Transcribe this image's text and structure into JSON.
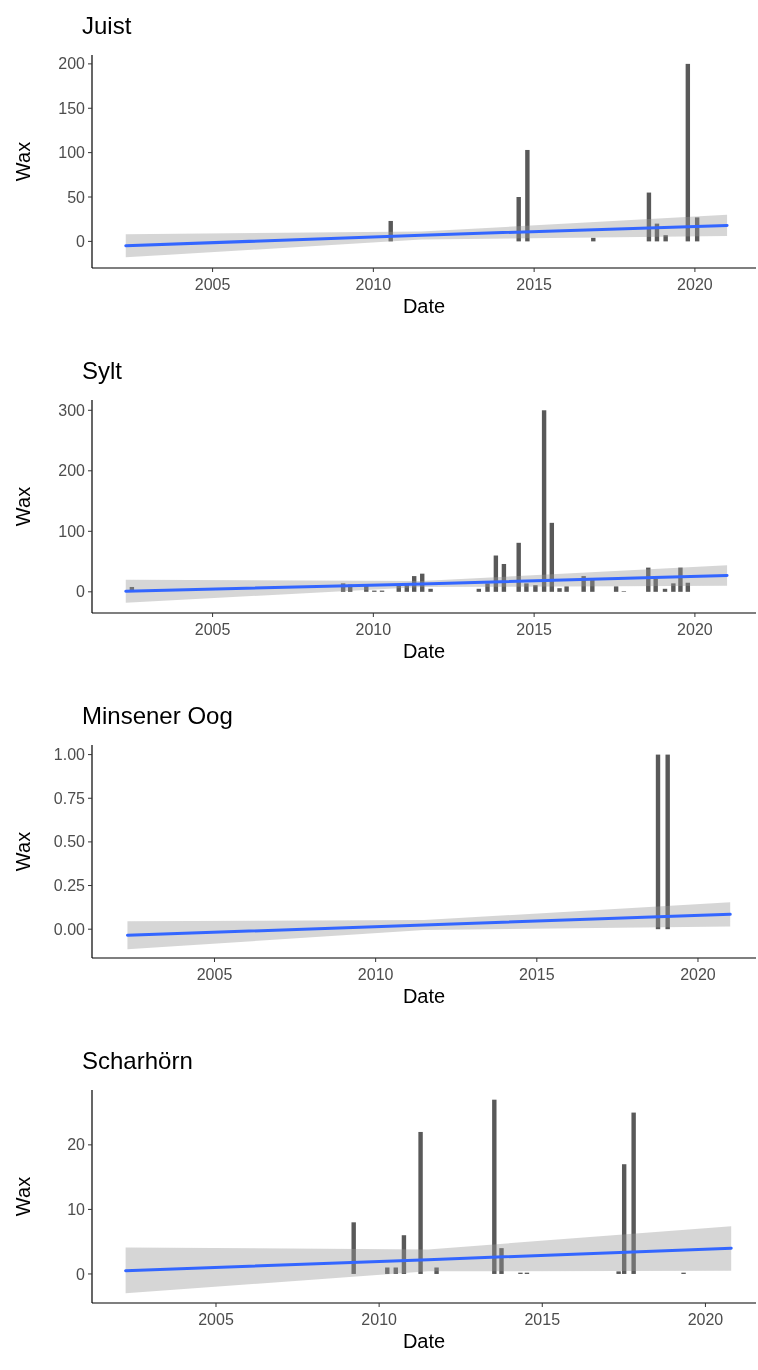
{
  "chart_data": [
    {
      "type": "bar",
      "title": "Juist",
      "xlabel": "Date",
      "ylabel": "Wax",
      "xlim": [
        2001.25,
        2021.9
      ],
      "xticks": [
        2005,
        2010,
        2015,
        2020
      ],
      "ylim": [
        -30,
        210
      ],
      "yticks": [
        0,
        50,
        100,
        150,
        200
      ],
      "series": [
        {
          "color": "#595959",
          "x": [
            2010.54,
            2014.52,
            2014.79,
            2016.84,
            2018.57,
            2018.82,
            2019.09,
            2019.78,
            2020.07
          ],
          "values": [
            23,
            50,
            103,
            4,
            55,
            20,
            7,
            200,
            27
          ]
        },
        {
          "type": "line",
          "color": "#3366ff",
          "x": [
            2002.3,
            2011.5,
            2021
          ],
          "values": [
            -5,
            7,
            18
          ],
          "lower": [
            -18,
            2,
            6
          ],
          "upper": [
            8,
            11,
            30
          ]
        }
      ]
    },
    {
      "type": "bar",
      "title": "Sylt",
      "xlabel": "Date",
      "ylabel": "Wax",
      "xlim": [
        2001.25,
        2021.9
      ],
      "xticks": [
        2005,
        2010,
        2015,
        2020
      ],
      "ylim": [
        -35,
        317
      ],
      "yticks": [
        0,
        100,
        200,
        300
      ],
      "series": [
        {
          "color": "#595959",
          "x": [
            2002.49,
            2009.06,
            2009.28,
            2009.78,
            2010.03,
            2010.27,
            2010.79,
            2011.04,
            2011.27,
            2011.52,
            2011.78,
            2013.28,
            2013.55,
            2013.81,
            2014.06,
            2014.52,
            2014.76,
            2015.04,
            2015.31,
            2015.55,
            2015.79,
            2016.01,
            2016.54,
            2016.81,
            2017.55,
            2017.79,
            2018.55,
            2018.78,
            2019.07,
            2019.33,
            2019.55,
            2019.78
          ],
          "values": [
            8,
            14,
            12,
            10,
            2,
            2,
            11,
            12,
            26,
            30,
            5,
            5,
            14,
            60,
            46,
            81,
            14,
            11,
            300,
            114,
            6,
            9,
            26,
            20,
            9,
            1,
            40,
            22,
            5,
            14,
            40,
            15
          ]
        },
        {
          "type": "line",
          "color": "#3366ff",
          "x": [
            2002.3,
            2011.5,
            2021
          ],
          "values": [
            1,
            13,
            27
          ],
          "lower": [
            -18,
            8,
            10
          ],
          "upper": [
            20,
            18,
            44
          ]
        }
      ]
    },
    {
      "type": "bar",
      "title": "Minsener Oog",
      "xlabel": "Date",
      "ylabel": "Wax",
      "xlim": [
        2001.2,
        2021.8
      ],
      "xticks": [
        2005,
        2010,
        2015,
        2020
      ],
      "ylim": [
        -0.165,
        1.055
      ],
      "yticks": [
        {
          "value": 0,
          "label": "0.00"
        },
        {
          "value": 0.25,
          "label": "0.25"
        },
        {
          "value": 0.5,
          "label": "0.50"
        },
        {
          "value": 0.75,
          "label": "0.75"
        },
        {
          "value": 1,
          "label": "1.00"
        }
      ],
      "series": [
        {
          "color": "#595959",
          "x": [
            2018.76,
            2019.06
          ],
          "values": [
            1,
            1
          ]
        },
        {
          "type": "line",
          "color": "#3366ff",
          "x": [
            2002.3,
            2011.5,
            2021
          ],
          "values": [
            -0.035,
            0.024,
            0.085
          ],
          "lower": [
            -0.115,
            -0.005,
            0.015
          ],
          "upper": [
            0.045,
            0.052,
            0.155
          ]
        }
      ]
    },
    {
      "type": "bar",
      "title": "Scharhörn",
      "xlabel": "Date",
      "ylabel": "Wax",
      "xlim": [
        2001.2,
        2021.55
      ],
      "xticks": [
        2005,
        2010,
        2015,
        2020
      ],
      "ylim": [
        -4.5,
        28.5
      ],
      "yticks": [
        0,
        10,
        20
      ],
      "series": [
        {
          "color": "#595959",
          "x": [
            2009.22,
            2010.25,
            2010.51,
            2010.76,
            2011.27,
            2011.76,
            2013.53,
            2013.75,
            2014.33,
            2014.53,
            2017.34,
            2017.51,
            2017.8,
            2019.33
          ],
          "values": [
            8,
            1,
            1,
            6,
            22,
            1,
            27,
            4,
            0.2,
            0.2,
            0.4,
            17,
            25,
            0.2
          ]
        },
        {
          "type": "line",
          "color": "#3366ff",
          "x": [
            2002.23,
            2011.5,
            2020.79
          ],
          "values": [
            0.5,
            2.2,
            4
          ],
          "lower": [
            -3,
            0.4,
            0.5
          ],
          "upper": [
            4.1,
            3.8,
            7.4
          ]
        }
      ]
    }
  ]
}
